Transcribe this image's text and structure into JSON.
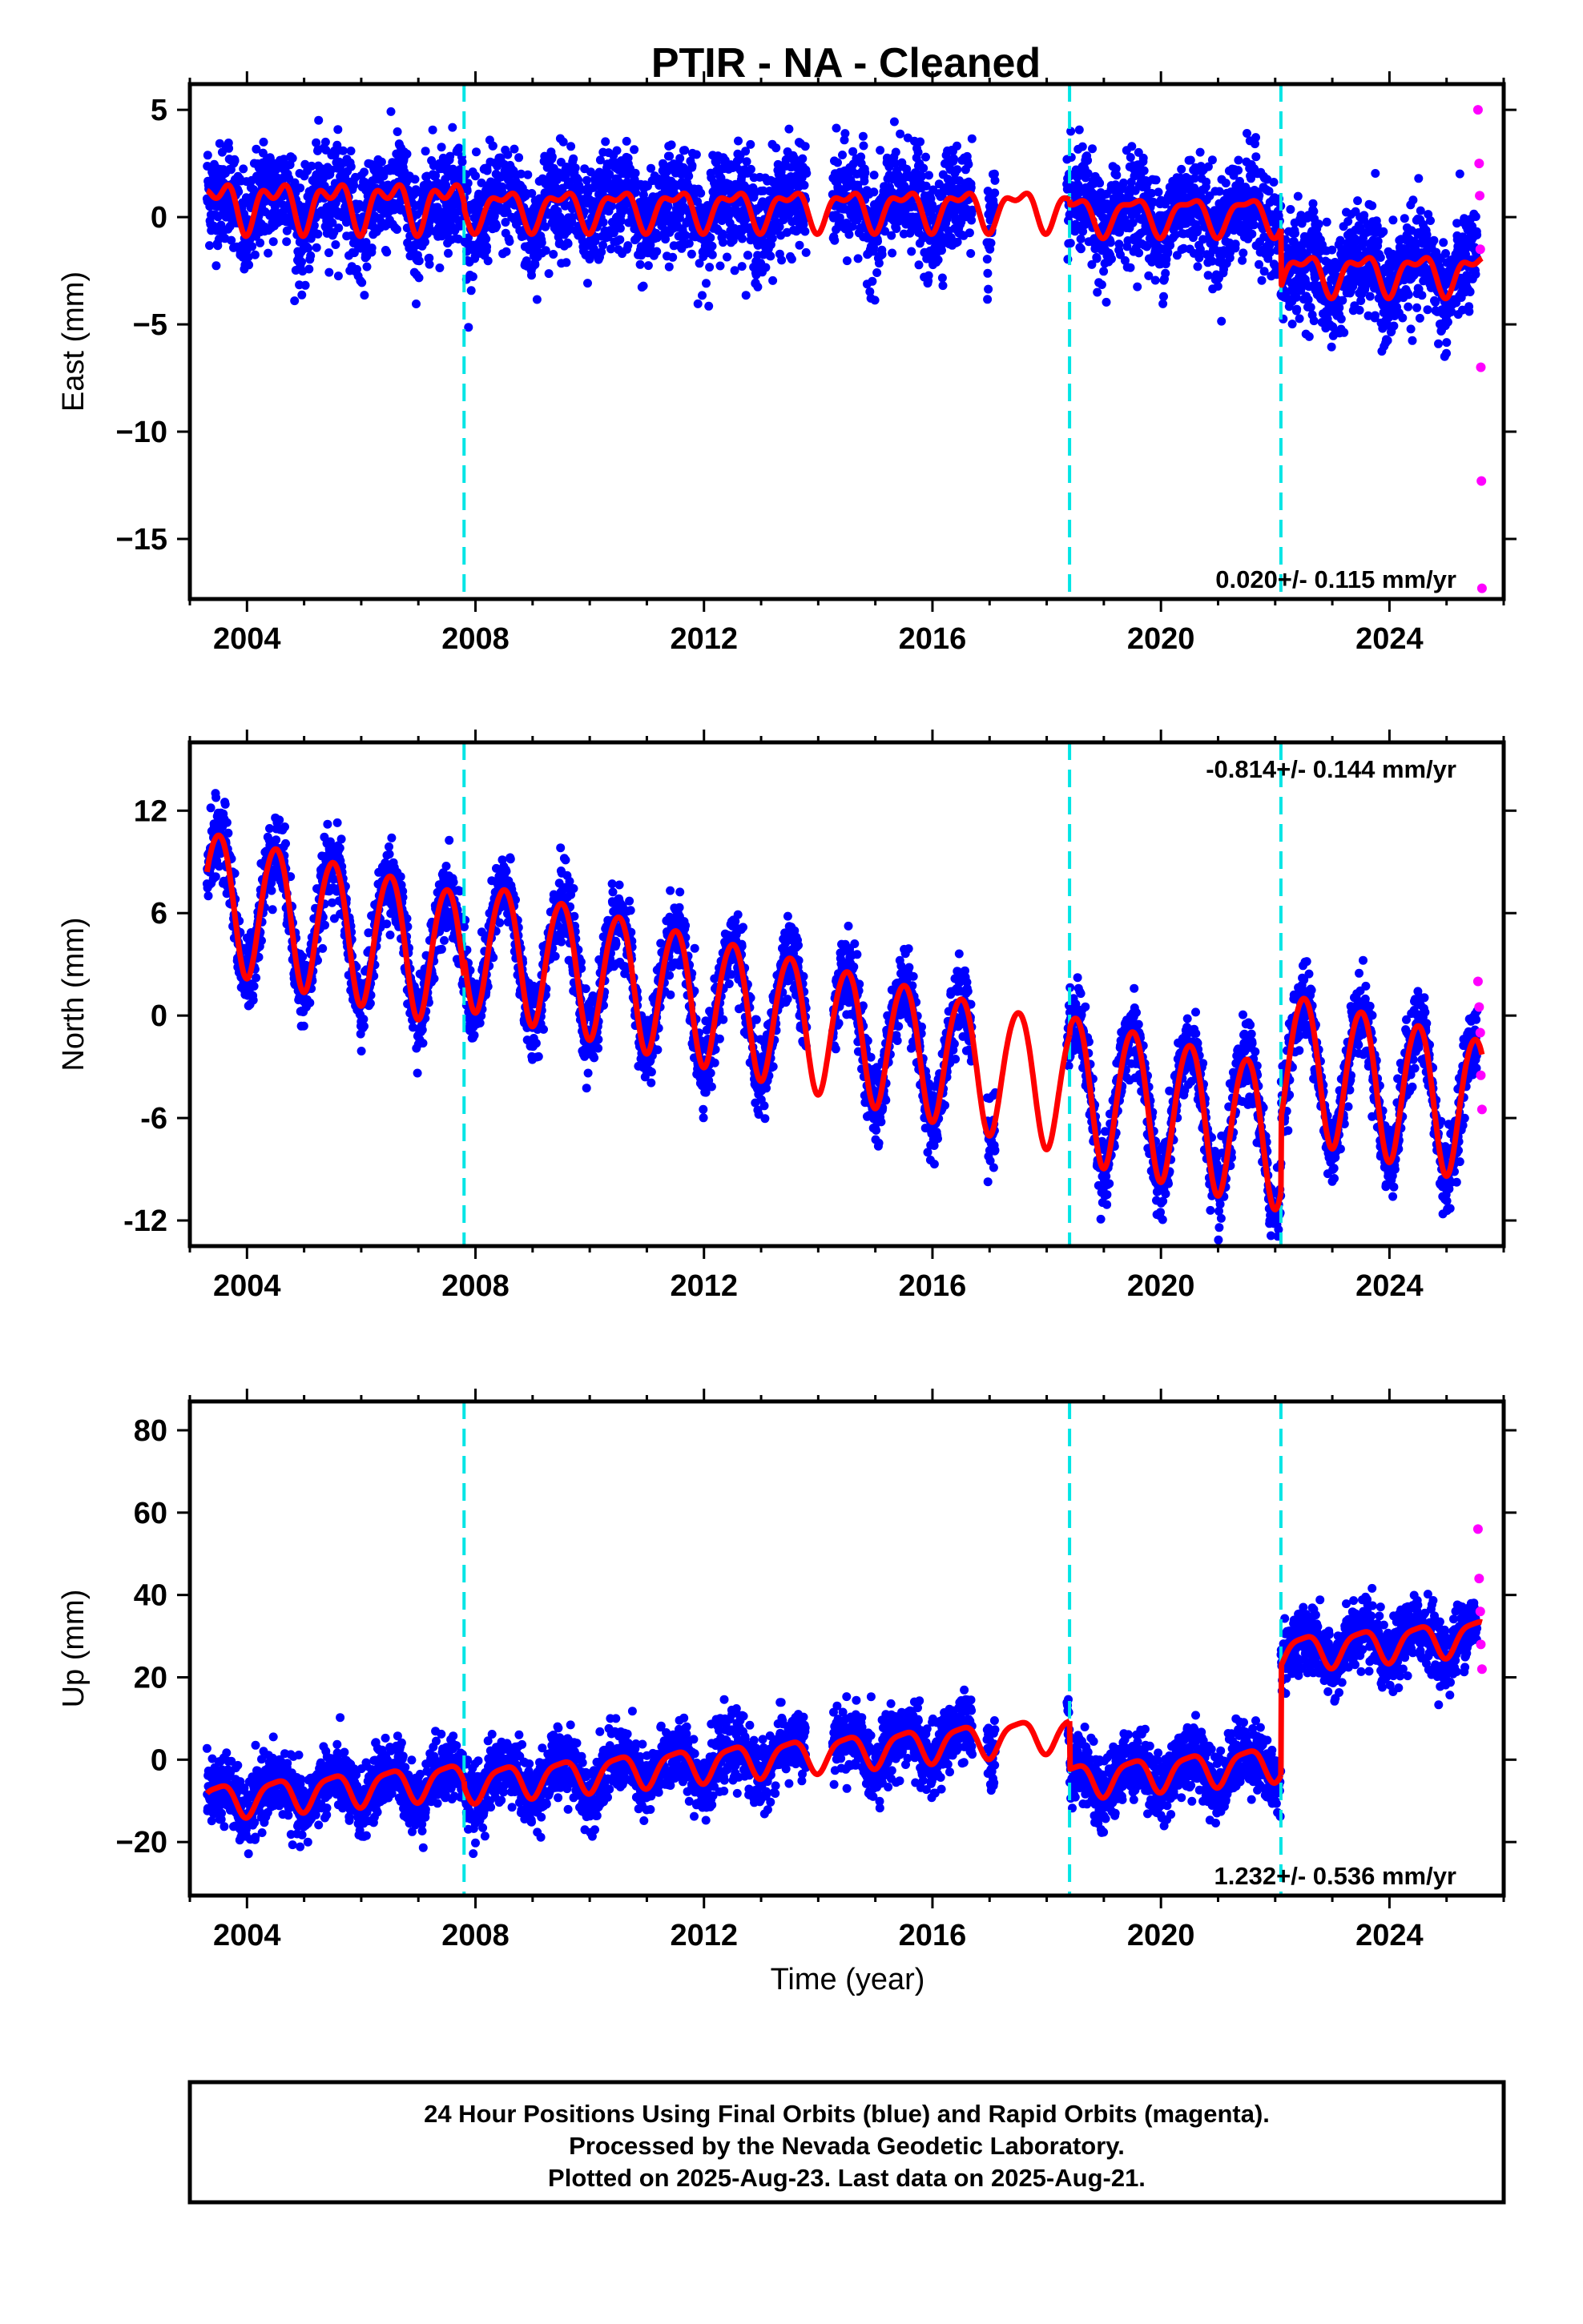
{
  "title": "PTIR  - NA - Cleaned",
  "xlabel": "Time (year)",
  "footer": {
    "lines": [
      "24 Hour Positions Using Final Orbits (blue) and Rapid Orbits (magenta).",
      "Processed by the Nevada Geodetic Laboratory.",
      "Plotted on 2025-Aug-23. Last data on 2025-Aug-21."
    ]
  },
  "colors": {
    "final_orbits": "#0000ff",
    "rapid_orbits": "#ff00ff",
    "model": "#ff0000",
    "equipment_change": "#00e5e5",
    "frame": "#000000"
  },
  "chart_data": [
    {
      "type": "scatter",
      "component": "east",
      "ylabel": "East (mm)",
      "rate_text": "0.020+/- 0.115 mm/yr",
      "rate_position": "bottom-right",
      "xlim": [
        2003.0,
        2026.0
      ],
      "ylim": [
        -17.8,
        6.2
      ],
      "xticks": [
        2004,
        2008,
        2012,
        2016,
        2020,
        2024
      ],
      "yticks": [
        5,
        0,
        -5,
        -10,
        -15
      ],
      "ytick_labels": [
        "5",
        "0",
        "−5",
        "−10",
        "−15"
      ],
      "steps": [
        2007.8,
        2018.4,
        2022.1
      ],
      "data_span": [
        2003.3,
        2025.62
      ],
      "data_gaps": [
        [
          2013.8,
          2014.25
        ],
        [
          2016.7,
          2016.95
        ],
        [
          2017.1,
          2018.35
        ]
      ],
      "model_segments": [
        {
          "x": [
            2003.3,
            2007.8
          ],
          "offset": 0.6,
          "rate": 0.0,
          "annual": 0.9,
          "semiannual": 0.6
        },
        {
          "x": [
            2007.8,
            2018.4
          ],
          "offset": 0.4,
          "rate": 0.0,
          "annual": 0.8,
          "semiannual": 0.4
        },
        {
          "x": [
            2018.4,
            2022.1
          ],
          "offset": 0.1,
          "rate": 0.0,
          "annual": 0.8,
          "semiannual": 0.3
        },
        {
          "x": [
            2022.1,
            2025.62
          ],
          "offset": -2.6,
          "rate": 0.0,
          "annual": 0.8,
          "semiannual": 0.4
        }
      ],
      "scatter_sigma": 1.2,
      "rapid_points": {
        "x": [
          2025.55,
          2025.57,
          2025.58,
          2025.59,
          2025.6,
          2025.61,
          2025.62
        ],
        "y": [
          5.0,
          2.5,
          1.0,
          -1.5,
          -7.0,
          -12.3,
          -17.3
        ]
      }
    },
    {
      "type": "scatter",
      "component": "north",
      "ylabel": "North (mm)",
      "rate_text": "-0.814+/- 0.144 mm/yr",
      "rate_position": "top-right",
      "xlim": [
        2003.0,
        2026.0
      ],
      "ylim": [
        -13.5,
        16.0
      ],
      "xticks": [
        2004,
        2008,
        2012,
        2016,
        2020,
        2024
      ],
      "yticks": [
        12,
        6,
        0,
        -6,
        -12
      ],
      "ytick_labels": [
        "12",
        "6",
        "0",
        "-6",
        "-12"
      ],
      "steps": [
        2007.8,
        2018.4,
        2022.1
      ],
      "data_span": [
        2003.3,
        2025.62
      ],
      "data_gaps": [
        [
          2013.8,
          2014.25
        ],
        [
          2016.7,
          2016.95
        ],
        [
          2017.1,
          2018.35
        ]
      ],
      "model_segments": [
        {
          "x": [
            2003.3,
            2007.8
          ],
          "offset": 7.0,
          "rate": -0.8,
          "annual": 4.0,
          "semiannual": 0.3
        },
        {
          "x": [
            2007.8,
            2018.4
          ],
          "offset": 4.4,
          "rate": -0.8,
          "annual": 3.8,
          "semiannual": 0.3
        },
        {
          "x": [
            2018.4,
            2022.1
          ],
          "offset": -4.0,
          "rate": -0.8,
          "annual": 4.2,
          "semiannual": 0.3
        },
        {
          "x": [
            2022.1,
            2025.62
          ],
          "offset": -2.6,
          "rate": -0.8,
          "annual": 4.2,
          "semiannual": 0.3
        }
      ],
      "scatter_sigma": 1.1,
      "rapid_points": {
        "x": [
          2025.55,
          2025.57,
          2025.59,
          2025.6,
          2025.62
        ],
        "y": [
          2.0,
          0.5,
          -1.0,
          -3.5,
          -5.5
        ]
      }
    },
    {
      "type": "scatter",
      "component": "up",
      "ylabel": "Up (mm)",
      "rate_text": "1.232+/- 0.536 mm/yr",
      "rate_position": "bottom-right",
      "xlim": [
        2003.0,
        2026.0
      ],
      "ylim": [
        -33.0,
        87.0
      ],
      "xticks": [
        2004,
        2008,
        2012,
        2016,
        2020,
        2024
      ],
      "yticks": [
        80,
        60,
        40,
        20,
        0,
        -20
      ],
      "ytick_labels": [
        "80",
        "60",
        "40",
        "20",
        "0",
        "−20"
      ],
      "steps": [
        2007.8,
        2018.4,
        2022.1
      ],
      "data_span": [
        2003.3,
        2025.62
      ],
      "data_gaps": [
        [
          2013.8,
          2014.25
        ],
        [
          2016.7,
          2016.95
        ],
        [
          2017.1,
          2018.35
        ]
      ],
      "model_segments": [
        {
          "x": [
            2003.3,
            2007.8
          ],
          "offset": -10.0,
          "rate": 1.2,
          "annual": 4.0,
          "semiannual": 1.0
        },
        {
          "x": [
            2007.8,
            2018.4
          ],
          "offset": -6.0,
          "rate": 1.2,
          "annual": 4.0,
          "semiannual": 1.0
        },
        {
          "x": [
            2018.4,
            2022.1
          ],
          "offset": -5.0,
          "rate": 1.2,
          "annual": 4.0,
          "semiannual": 1.0
        },
        {
          "x": [
            2022.1,
            2025.62
          ],
          "offset": 26.0,
          "rate": 1.2,
          "annual": 4.0,
          "semiannual": 1.0
        }
      ],
      "scatter_sigma": 4.0,
      "rapid_points": {
        "x": [
          2025.55,
          2025.57,
          2025.59,
          2025.6,
          2025.62
        ],
        "y": [
          56.0,
          44.0,
          36.0,
          28.0,
          22.0
        ]
      }
    }
  ]
}
